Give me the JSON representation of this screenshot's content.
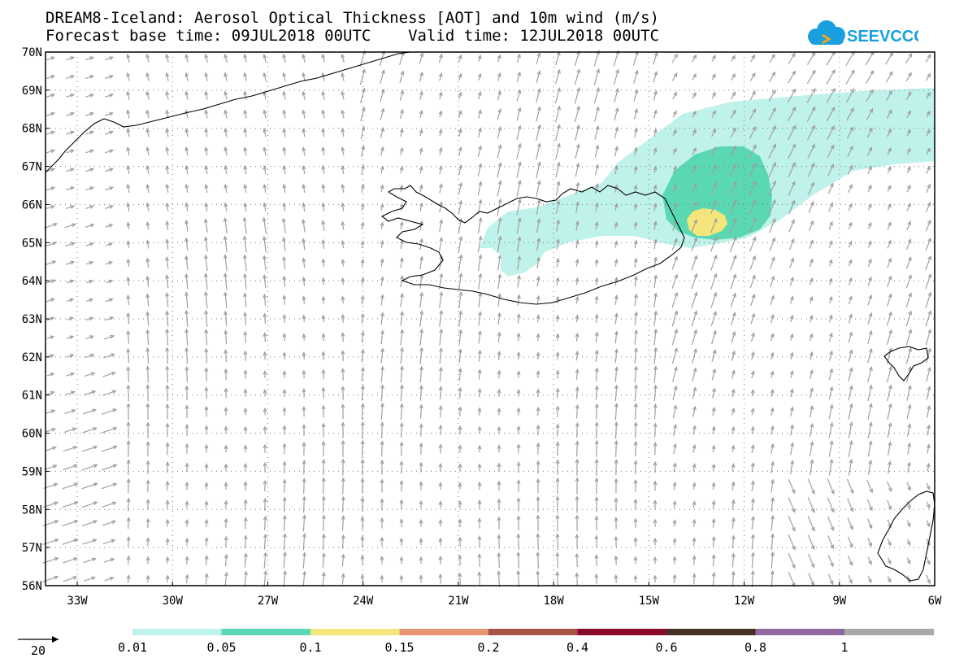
{
  "header": {
    "title_line1": "DREAM8-Iceland: Aerosol Optical Thickness [AOT] and 10m wind (m/s)",
    "title_line2": "Forecast base time: 09JUL2018 00UTC    Valid time: 12JUL2018 00UTC",
    "logo_text": "SEEVCCC"
  },
  "map": {
    "lat_labels": [
      "70N",
      "69N",
      "68N",
      "67N",
      "66N",
      "65N",
      "64N",
      "63N",
      "62N",
      "61N",
      "60N",
      "59N",
      "58N",
      "57N",
      "56N"
    ],
    "lon_labels": [
      "33W",
      "30W",
      "27W",
      "24W",
      "21W",
      "18W",
      "15W",
      "12W",
      "9W",
      "6W"
    ],
    "lat_range": [
      56,
      70
    ],
    "lon_range": [
      -34,
      -6
    ],
    "grid": "dotted",
    "wind_arrow_color": "#a0a0a0",
    "coastline_color": "#000000"
  },
  "legend": {
    "reference_vector_label": "20",
    "colorbar_labels": [
      "0.01",
      "0.05",
      "0.1",
      "0.15",
      "0.2",
      "0.4",
      "0.6",
      "0.8",
      "1"
    ],
    "colorbar_colors": [
      "#bff2ea",
      "#5ad8b4",
      "#f5e57a",
      "#e89475",
      "#a85249",
      "#8a0a2a",
      "#463022",
      "#8e6a9e",
      "#a8a8a8"
    ]
  }
}
